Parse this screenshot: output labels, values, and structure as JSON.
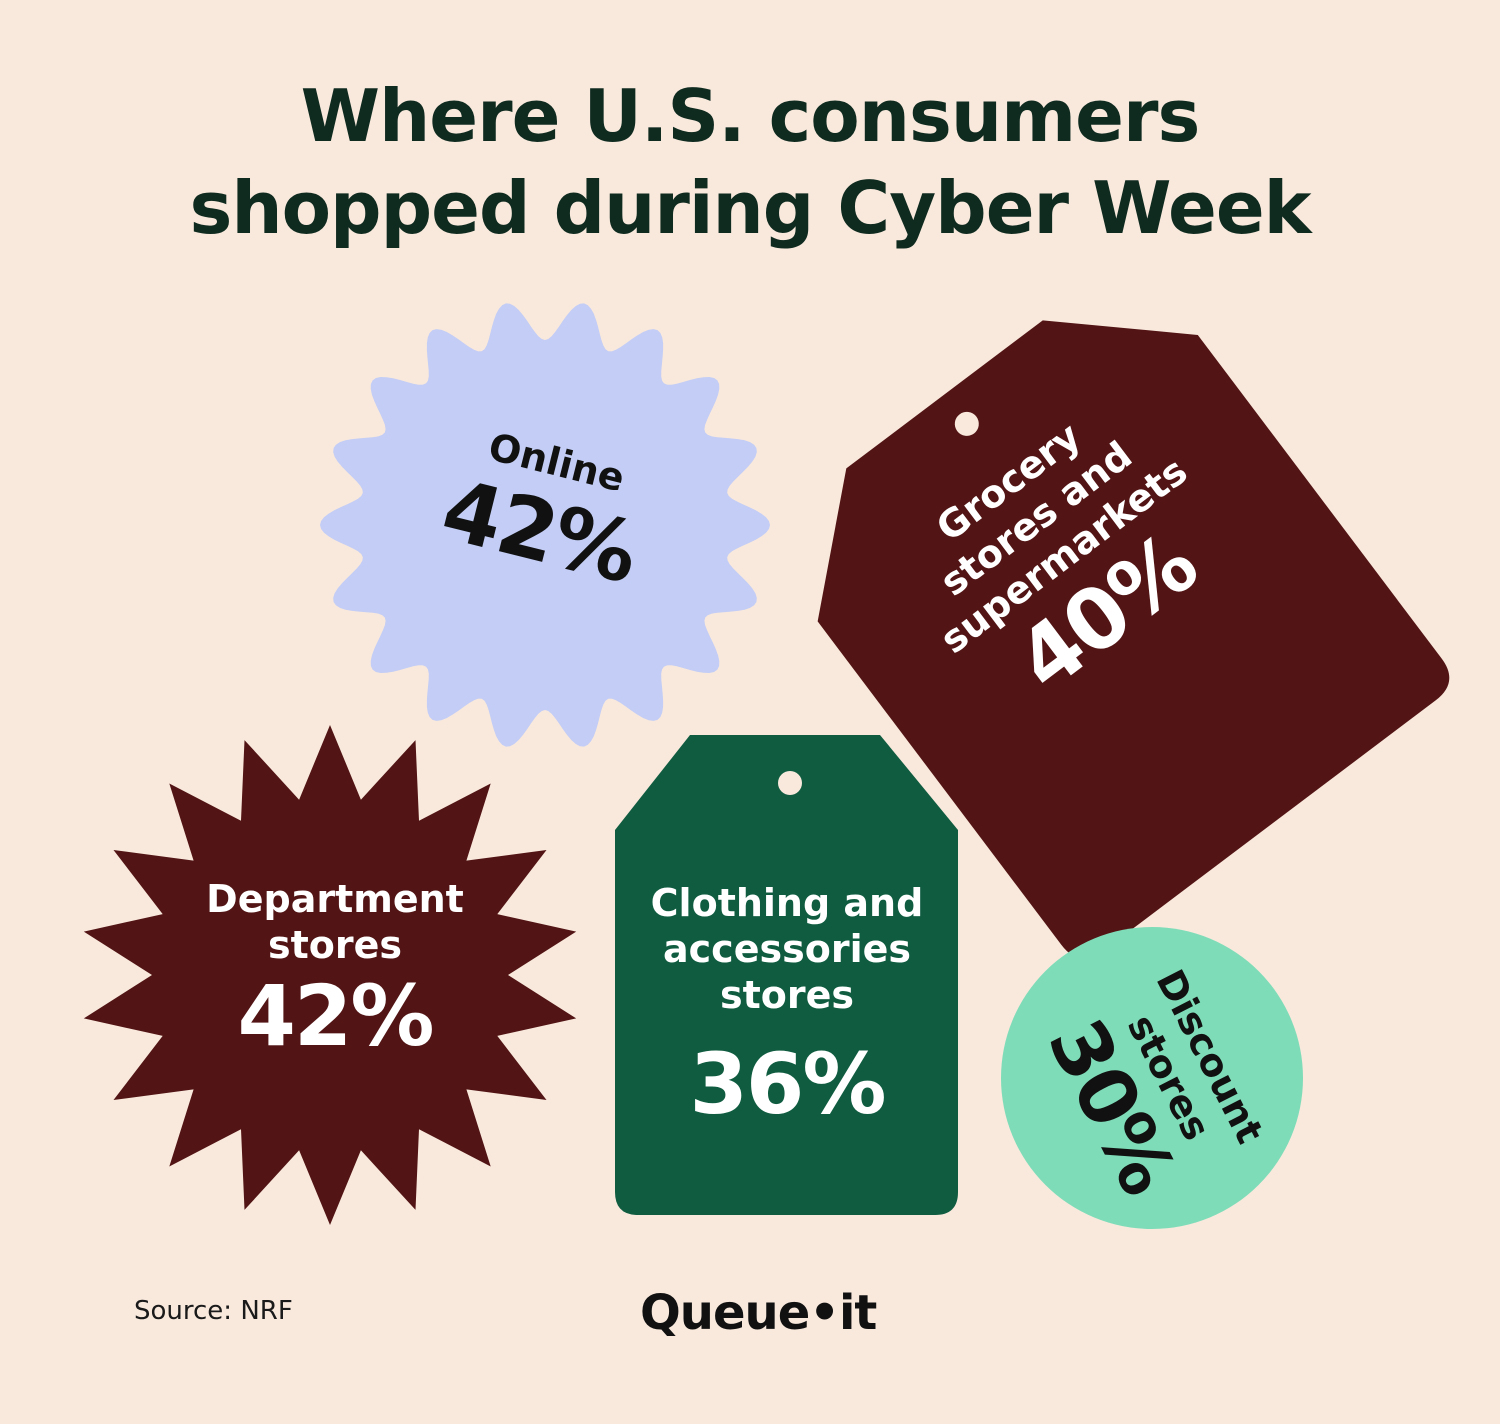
{
  "title_line1": "Where U.S. consumers",
  "title_line2": "shopped during Cyber Week",
  "chart_data": {
    "type": "bar",
    "title": "Where U.S. consumers shopped during Cyber Week",
    "categories": [
      "Online",
      "Grocery stores and supermarkets",
      "Department stores",
      "Clothing and accessories stores",
      "Discount stores"
    ],
    "values": [
      42,
      40,
      42,
      36,
      30
    ],
    "unit": "%",
    "items": [
      {
        "category_lines": [
          "Online"
        ],
        "value_label": "42%",
        "shape": "scalloped-badge",
        "color": "#c3cdf5",
        "text_color": "#111111"
      },
      {
        "category_lines": [
          "Grocery",
          "stores and",
          "supermarkets"
        ],
        "value_label": "40%",
        "shape": "price-tag",
        "color": "#521414",
        "text_color": "#ffffff"
      },
      {
        "category_lines": [
          "Department",
          "stores"
        ],
        "value_label": "42%",
        "shape": "starburst",
        "color": "#521414",
        "text_color": "#ffffff"
      },
      {
        "category_lines": [
          "Clothing and",
          "accessories",
          "stores"
        ],
        "value_label": "36%",
        "shape": "price-tag",
        "color": "#0f5c40",
        "text_color": "#ffffff"
      },
      {
        "category_lines": [
          "Discount",
          "stores"
        ],
        "value_label": "30%",
        "shape": "circle",
        "color": "#7fdcb8",
        "text_color": "#111111"
      }
    ]
  },
  "source": "Source: NRF",
  "brand": "Queue•it",
  "colors": {
    "background": "#f9e9dd",
    "title": "#0f2a1f"
  }
}
